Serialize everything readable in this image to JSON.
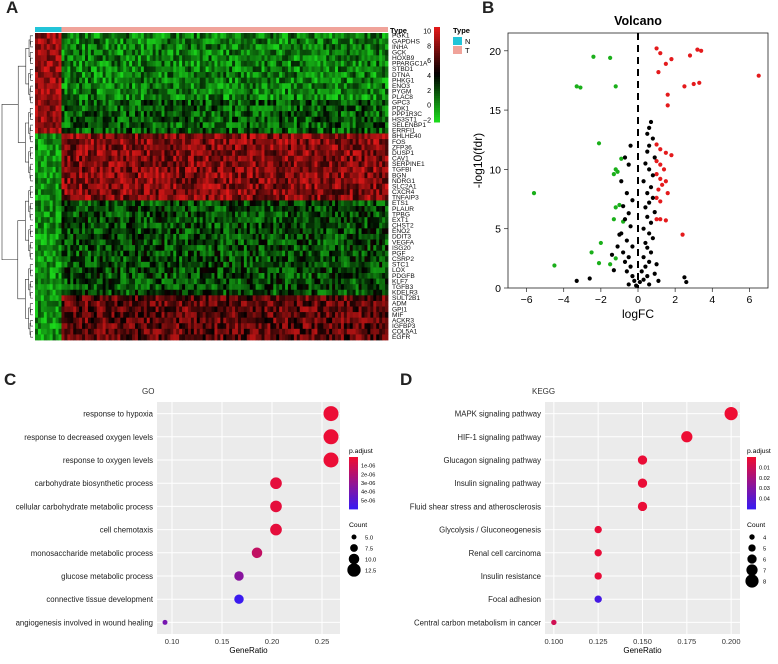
{
  "panels": {
    "a": {
      "letter": "A"
    },
    "b": {
      "letter": "B"
    },
    "c": {
      "letter": "C"
    },
    "d": {
      "letter": "D"
    }
  },
  "chart_data": [
    {
      "type": "heatmap",
      "panel": "A",
      "genes": [
        "PGK1",
        "GAPDHS",
        "INHA",
        "GCK",
        "HOXB9",
        "PPARGC1A",
        "STBD1",
        "DTNA",
        "PHKG1",
        "ENO3",
        "PYGM",
        "PLAC8",
        "GPC3",
        "PDK1",
        "PPP1R3C",
        "HS3ST1",
        "SELENBP1",
        "ERRFI1",
        "BHLHE40",
        "FOS",
        "ZFP36",
        "DUSP1",
        "CAV1",
        "SERPINE1",
        "TGFBI",
        "BGN",
        "NDRG1",
        "SLC2A1",
        "CXCR4",
        "TNFAIP3",
        "ETS1",
        "PLAUR",
        "TPBG",
        "EXT1",
        "CHST2",
        "ENO2",
        "DDIT3",
        "VEGFA",
        "ISG20",
        "PGF",
        "CSRP2",
        "STC1",
        "LOX",
        "PDGFB",
        "KLF7",
        "TGFB3",
        "KDELR3",
        "SULT2B1",
        "ADM",
        "GPI1",
        "MIF",
        "ACKR3",
        "IGFBP3",
        "COL5A1",
        "EGFR"
      ],
      "annotation": {
        "title": "Type",
        "groups": [
          {
            "label": "N",
            "color": "#22c4d8"
          },
          {
            "label": "T",
            "color": "#f0a39a"
          }
        ]
      },
      "color_scale": {
        "min": -2,
        "max": 10,
        "ticks": [
          10,
          8,
          6,
          4,
          2,
          0,
          -2
        ],
        "colors": [
          "#1bd91b",
          "#000000",
          "#e01818"
        ]
      }
    },
    {
      "type": "scatter",
      "panel": "B",
      "title": "Volcano",
      "xlabel": "logFC",
      "ylabel": "-log10(fdr)",
      "xlim": [
        -7,
        7
      ],
      "ylim": [
        0,
        21.5
      ],
      "xticks": [
        -6,
        -4,
        -2,
        0,
        2,
        4,
        6
      ],
      "yticks": [
        0,
        5,
        10,
        15,
        20
      ],
      "threshold_x": 0,
      "series": [
        {
          "color": "#e41a1c",
          "points": [
            [
              1.0,
              20.2
            ],
            [
              1.2,
              19.8
            ],
            [
              1.8,
              19.3
            ],
            [
              1.5,
              18.9
            ],
            [
              1.1,
              18.2
            ],
            [
              3.2,
              20.1
            ],
            [
              3.4,
              20.0
            ],
            [
              2.8,
              19.6
            ],
            [
              3.3,
              17.3
            ],
            [
              3.0,
              17.2
            ],
            [
              2.5,
              17.0
            ],
            [
              1.6,
              16.3
            ],
            [
              1.6,
              15.4
            ],
            [
              6.5,
              17.9
            ],
            [
              1.0,
              12.1
            ],
            [
              1.2,
              11.7
            ],
            [
              1.5,
              11.4
            ],
            [
              1.8,
              11.2
            ],
            [
              1.0,
              10.7
            ],
            [
              1.2,
              10.4
            ],
            [
              1.4,
              10.0
            ],
            [
              1.0,
              9.6
            ],
            [
              1.2,
              9.2
            ],
            [
              1.5,
              9.0
            ],
            [
              1.3,
              8.7
            ],
            [
              1.1,
              8.3
            ],
            [
              1.6,
              8.0
            ],
            [
              1.0,
              7.6
            ],
            [
              1.2,
              7.3
            ],
            [
              2.4,
              4.5
            ],
            [
              1.0,
              5.8
            ],
            [
              1.2,
              5.8
            ],
            [
              1.5,
              5.7
            ]
          ]
        },
        {
          "color": "#1aaf1a",
          "points": [
            [
              -2.4,
              19.5
            ],
            [
              -1.5,
              19.4
            ],
            [
              -3.3,
              17.0
            ],
            [
              -3.1,
              16.9
            ],
            [
              -1.2,
              17.0
            ],
            [
              -2.1,
              12.2
            ],
            [
              -0.9,
              10.9
            ],
            [
              -1.2,
              10.0
            ],
            [
              -1.1,
              9.8
            ],
            [
              -1.3,
              9.6
            ],
            [
              -5.6,
              8.0
            ],
            [
              -1.0,
              7.0
            ],
            [
              -1.2,
              6.8
            ],
            [
              -1.3,
              5.8
            ],
            [
              -0.8,
              5.6
            ],
            [
              -2.0,
              3.8
            ],
            [
              -2.5,
              3.0
            ],
            [
              -2.1,
              2.1
            ],
            [
              -1.5,
              2.0
            ],
            [
              -4.5,
              1.9
            ],
            [
              -1.2,
              2.5
            ]
          ]
        },
        {
          "color": "#000000",
          "points": [
            [
              0.7,
              14.0
            ],
            [
              0.6,
              13.5
            ],
            [
              0.5,
              13.0
            ],
            [
              0.8,
              12.6
            ],
            [
              0.6,
              12.0
            ],
            [
              0.5,
              11.5
            ],
            [
              0.9,
              11.0
            ],
            [
              0.4,
              10.5
            ],
            [
              0.6,
              10.0
            ],
            [
              0.8,
              9.5
            ],
            [
              0.3,
              9.0
            ],
            [
              0.7,
              8.5
            ],
            [
              0.5,
              8.0
            ],
            [
              0.8,
              7.6
            ],
            [
              0.6,
              7.2
            ],
            [
              0.4,
              6.8
            ],
            [
              0.9,
              6.4
            ],
            [
              0.5,
              6.0
            ],
            [
              0.7,
              5.5
            ],
            [
              0.3,
              5.0
            ],
            [
              0.6,
              4.6
            ],
            [
              0.8,
              4.2
            ],
            [
              0.4,
              3.8
            ],
            [
              0.5,
              3.4
            ],
            [
              0.7,
              3.0
            ],
            [
              0.3,
              2.6
            ],
            [
              0.6,
              2.2
            ],
            [
              0.4,
              1.8
            ],
            [
              0.2,
              1.4
            ],
            [
              0.5,
              1.0
            ],
            [
              0.3,
              0.7
            ],
            [
              0.1,
              0.5
            ],
            [
              0.6,
              0.3
            ],
            [
              -0.4,
              12.0
            ],
            [
              -0.7,
              11.0
            ],
            [
              -0.5,
              10.4
            ],
            [
              -0.9,
              9.0
            ],
            [
              -0.6,
              8.0
            ],
            [
              -0.3,
              7.4
            ],
            [
              -0.8,
              6.9
            ],
            [
              -0.5,
              6.3
            ],
            [
              -0.7,
              5.8
            ],
            [
              -0.4,
              5.2
            ],
            [
              -0.9,
              4.6
            ],
            [
              -0.6,
              4.0
            ],
            [
              -0.3,
              3.5
            ],
            [
              -0.8,
              3.0
            ],
            [
              -0.5,
              2.6
            ],
            [
              -0.7,
              2.2
            ],
            [
              -0.4,
              1.8
            ],
            [
              -0.6,
              1.4
            ],
            [
              -0.3,
              1.0
            ],
            [
              -0.2,
              0.6
            ],
            [
              -0.5,
              0.3
            ],
            [
              -0.1,
              0.2
            ],
            [
              -1.0,
              4.5
            ],
            [
              -1.1,
              3.5
            ],
            [
              -1.3,
              1.5
            ],
            [
              -1.4,
              2.8
            ],
            [
              -2.6,
              0.8
            ],
            [
              -3.3,
              0.6
            ],
            [
              2.5,
              0.9
            ],
            [
              2.6,
              0.5
            ],
            [
              1.1,
              0.6
            ],
            [
              0.9,
              1.2
            ],
            [
              1.0,
              2.0
            ]
          ]
        }
      ]
    },
    {
      "type": "scatter",
      "panel": "C",
      "title": "GO",
      "xlabel": "GeneRatio",
      "xlim": [
        0.085,
        0.268
      ],
      "xticks": [
        0.1,
        0.15,
        0.2,
        0.25
      ],
      "xtick_labels": [
        "0.10",
        "0.15",
        "0.20",
        "0.25"
      ],
      "categories": [
        "response to hypoxia",
        "response to decreased oxygen levels",
        "response to oxygen levels",
        "carbohydrate biosynthetic process",
        "cellular carbohydrate metabolic process",
        "cell chemotaxis",
        "monosaccharide metabolic process",
        "glucose metabolic process",
        "connective tissue development",
        "angiogenesis involved in wound healing"
      ],
      "gene_ratio": [
        0.259,
        0.259,
        0.259,
        0.204,
        0.204,
        0.204,
        0.185,
        0.167,
        0.167,
        0.093
      ],
      "count": [
        14,
        14,
        14,
        11,
        11,
        11,
        10,
        9,
        9,
        5
      ],
      "p_adjust": [
        1e-07,
        1e-07,
        1e-07,
        3e-07,
        3e-07,
        3e-07,
        1.5e-06,
        3.4e-06,
        6e-06,
        4e-06
      ],
      "color_legend": {
        "title": "p.adjust",
        "labels": [
          "1e-06",
          "2e-06",
          "3e-06",
          "4e-06",
          "5e-06"
        ],
        "min": 0,
        "max": 6e-06
      },
      "size_legend": {
        "title": "Count",
        "values": [
          5.0,
          7.5,
          10.0,
          12.5
        ],
        "labels": [
          "5.0",
          "7.5",
          "10.0",
          "12.5"
        ]
      }
    },
    {
      "type": "scatter",
      "panel": "D",
      "title": "KEGG",
      "xlabel": "GeneRatio",
      "xlim": [
        0.095,
        0.205
      ],
      "xticks": [
        0.1,
        0.125,
        0.15,
        0.175,
        0.2
      ],
      "xtick_labels": [
        "0.100",
        "0.125",
        "0.150",
        "0.175",
        "0.200"
      ],
      "categories": [
        "MAPK signaling pathway",
        "HIF-1 signaling pathway",
        "Glucagon signaling pathway",
        "Insulin signaling pathway",
        "Fluid shear stress and atherosclerosis",
        "Glycolysis / Gluconeogenesis",
        "Renal cell carcinoma",
        "Insulin resistance",
        "Focal adhesion",
        "Central carbon metabolism in cancer"
      ],
      "gene_ratio": [
        0.2,
        0.175,
        0.15,
        0.15,
        0.15,
        0.125,
        0.125,
        0.125,
        0.125,
        0.1
      ],
      "count": [
        8,
        7,
        6,
        6,
        6,
        5,
        5,
        5,
        5,
        4
      ],
      "p_adjust": [
        0.0001,
        0.0003,
        0.001,
        0.001,
        0.001,
        0.0015,
        0.0015,
        0.0015,
        0.045,
        0.008
      ],
      "color_legend": {
        "title": "p.adjust",
        "labels": [
          "0.01",
          "0.02",
          "0.03",
          "0.04"
        ],
        "min": 0,
        "max": 0.048
      },
      "size_legend": {
        "title": "Count",
        "values": [
          4,
          5,
          6,
          7,
          8
        ],
        "labels": [
          "4",
          "5",
          "6",
          "7",
          "8"
        ]
      }
    }
  ]
}
